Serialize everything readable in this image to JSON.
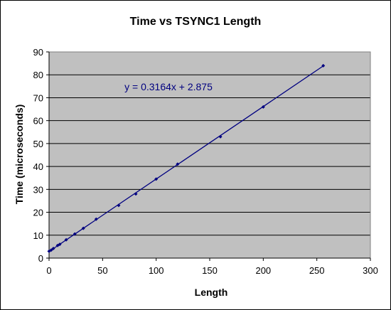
{
  "chart_data": {
    "type": "scatter",
    "title": "Time vs TSYNC1 Length",
    "xlabel": "Length",
    "ylabel": "Time (microseconds)",
    "xlim": [
      0,
      300
    ],
    "ylim": [
      0,
      90
    ],
    "xticks": [
      "0",
      "50",
      "100",
      "150",
      "200",
      "250",
      "300"
    ],
    "yticks": [
      "0",
      "10",
      "20",
      "30",
      "40",
      "50",
      "60",
      "70",
      "80",
      "90"
    ],
    "grid": true,
    "plot_background": "#c0c0c0",
    "series": [
      {
        "color": "#000080",
        "points": [
          [
            0,
            3
          ],
          [
            2,
            3.5
          ],
          [
            4,
            4.2
          ],
          [
            8,
            5.5
          ],
          [
            10,
            6
          ],
          [
            16,
            8
          ],
          [
            24,
            10.5
          ],
          [
            32,
            13
          ],
          [
            44,
            17
          ],
          [
            65,
            23
          ],
          [
            81,
            28
          ],
          [
            100,
            34.5
          ],
          [
            120,
            41
          ],
          [
            160,
            53
          ],
          [
            200,
            66
          ],
          [
            256,
            84
          ]
        ]
      }
    ],
    "trendline": {
      "slope": 0.3164,
      "intercept": 2.875,
      "x_range": [
        0,
        256
      ],
      "color": "#000080",
      "equation": "y = 0.3164x + 2.875"
    }
  }
}
